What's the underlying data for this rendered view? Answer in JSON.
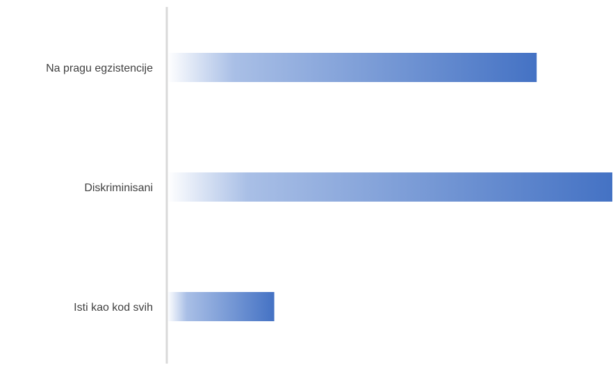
{
  "chart_data": {
    "type": "bar",
    "orientation": "horizontal",
    "categories": [
      "Na pragu egzistencije",
      "Diskriminisani",
      "Isti kao kod svih"
    ],
    "values": [
      83,
      100,
      24
    ],
    "xlim": [
      0,
      100
    ],
    "title": "",
    "xlabel": "",
    "ylabel": "",
    "grid": false,
    "legend": "none",
    "bar_gradient": [
      "#ffffff",
      "#4472c4"
    ],
    "axis_color": "#d9d9d9",
    "label_color": "#404040"
  }
}
